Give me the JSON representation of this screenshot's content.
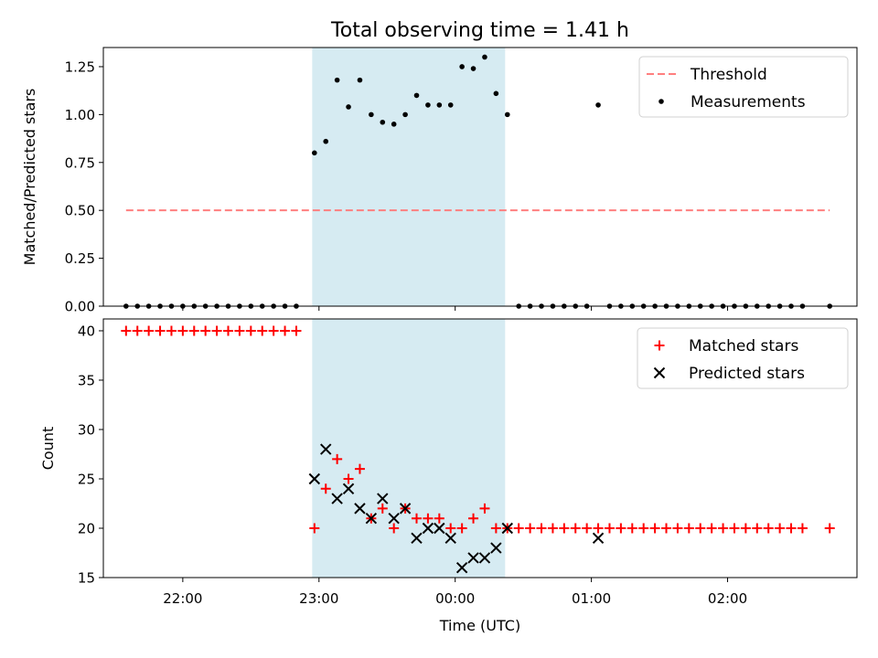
{
  "chart_data": [
    {
      "type": "scatter",
      "title": "Total observing time = 1.41 h",
      "xlabel": "",
      "ylabel": "Matched/Predicted stars",
      "ylim": [
        0,
        1.35
      ],
      "xlim": [
        "21:25",
        "02:57"
      ],
      "y_ticks": [
        "0.00",
        "0.25",
        "0.50",
        "0.75",
        "1.00",
        "1.25"
      ],
      "y_tick_values": [
        0,
        0.25,
        0.5,
        0.75,
        1.0,
        1.25
      ],
      "grid": false,
      "legend_position": "top-right",
      "shaded_span": {
        "start": "22:57",
        "end": "00:22",
        "color": "#add8e6"
      },
      "series": [
        {
          "name": "Threshold",
          "kind": "dashed-line",
          "color": "#ff7f7f",
          "x": [
            "21:35",
            "02:45"
          ],
          "y": [
            0.5,
            0.5
          ]
        },
        {
          "name": "Measurements",
          "kind": "dots",
          "color": "#000000",
          "x": [
            "21:35",
            "21:40",
            "21:45",
            "21:50",
            "21:55",
            "22:00",
            "22:05",
            "22:10",
            "22:15",
            "22:20",
            "22:25",
            "22:30",
            "22:35",
            "22:40",
            "22:45",
            "22:50",
            "22:58",
            "23:03",
            "23:08",
            "23:13",
            "23:18",
            "23:23",
            "23:28",
            "23:33",
            "23:38",
            "23:43",
            "23:48",
            "23:53",
            "23:58",
            "00:03",
            "00:08",
            "00:13",
            "00:18",
            "00:23",
            "00:28",
            "00:33",
            "00:38",
            "00:43",
            "00:48",
            "00:53",
            "00:58",
            "01:03",
            "01:08",
            "01:13",
            "01:18",
            "01:23",
            "01:28",
            "01:33",
            "01:38",
            "01:43",
            "01:48",
            "01:53",
            "01:58",
            "02:03",
            "02:08",
            "02:13",
            "02:18",
            "02:23",
            "02:28",
            "02:33",
            "02:45"
          ],
          "y": [
            0,
            0,
            0,
            0,
            0,
            0,
            0,
            0,
            0,
            0,
            0,
            0,
            0,
            0,
            0,
            0,
            0.8,
            0.86,
            1.18,
            1.04,
            1.18,
            1.0,
            0.96,
            0.95,
            1.0,
            1.1,
            1.05,
            1.05,
            1.05,
            1.25,
            1.24,
            1.3,
            1.11,
            1.0,
            0,
            0,
            0,
            0,
            0,
            0,
            0,
            1.05,
            0,
            0,
            0,
            0,
            0,
            0,
            0,
            0,
            0,
            0,
            0,
            0,
            0,
            0,
            0,
            0,
            0,
            0,
            0
          ]
        }
      ]
    },
    {
      "type": "scatter",
      "title": "",
      "xlabel": "Time (UTC)",
      "ylabel": "Count",
      "ylim": [
        15,
        41.2
      ],
      "xlim": [
        "21:25",
        "02:57"
      ],
      "y_ticks": [
        "15",
        "20",
        "25",
        "30",
        "35",
        "40"
      ],
      "y_tick_values": [
        15,
        20,
        25,
        30,
        35,
        40
      ],
      "x_ticks": [
        "22:00",
        "23:00",
        "00:00",
        "01:00",
        "02:00"
      ],
      "grid": false,
      "legend_position": "top-right",
      "shaded_span": {
        "start": "22:57",
        "end": "00:22",
        "color": "#add8e6"
      },
      "series": [
        {
          "name": "Matched stars",
          "kind": "plus",
          "color": "#ff0000",
          "x": [
            "21:35",
            "21:40",
            "21:45",
            "21:50",
            "21:55",
            "22:00",
            "22:05",
            "22:10",
            "22:15",
            "22:20",
            "22:25",
            "22:30",
            "22:35",
            "22:40",
            "22:45",
            "22:50",
            "22:58",
            "23:03",
            "23:08",
            "23:13",
            "23:18",
            "23:23",
            "23:28",
            "23:33",
            "23:38",
            "23:43",
            "23:48",
            "23:53",
            "23:58",
            "00:03",
            "00:08",
            "00:13",
            "00:18",
            "00:23",
            "00:28",
            "00:33",
            "00:38",
            "00:43",
            "00:48",
            "00:53",
            "00:58",
            "01:03",
            "01:08",
            "01:13",
            "01:18",
            "01:23",
            "01:28",
            "01:33",
            "01:38",
            "01:43",
            "01:48",
            "01:53",
            "01:58",
            "02:03",
            "02:08",
            "02:13",
            "02:18",
            "02:23",
            "02:28",
            "02:33",
            "02:45"
          ],
          "y": [
            40,
            40,
            40,
            40,
            40,
            40,
            40,
            40,
            40,
            40,
            40,
            40,
            40,
            40,
            40,
            40,
            20,
            24,
            27,
            25,
            26,
            21,
            22,
            20,
            22,
            21,
            21,
            21,
            20,
            20,
            21,
            22,
            20,
            20,
            20,
            20,
            20,
            20,
            20,
            20,
            20,
            20,
            20,
            20,
            20,
            20,
            20,
            20,
            20,
            20,
            20,
            20,
            20,
            20,
            20,
            20,
            20,
            20,
            20,
            20,
            20
          ]
        },
        {
          "name": "Predicted stars",
          "kind": "cross",
          "color": "#000000",
          "x": [
            "22:58",
            "23:03",
            "23:08",
            "23:13",
            "23:18",
            "23:23",
            "23:28",
            "23:33",
            "23:38",
            "23:43",
            "23:48",
            "23:53",
            "23:58",
            "00:03",
            "00:08",
            "00:13",
            "00:18",
            "00:23",
            "01:03"
          ],
          "y": [
            25,
            28,
            23,
            24,
            22,
            21,
            23,
            21,
            22,
            19,
            20,
            20,
            19,
            16,
            17,
            17,
            18,
            20,
            19
          ]
        }
      ]
    }
  ]
}
